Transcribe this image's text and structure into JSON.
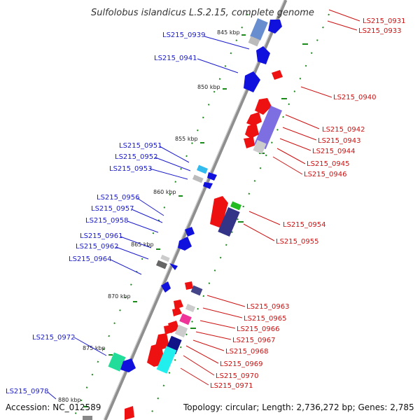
{
  "title": "Sulfolobus islandicus L.S.2.15, complete genome",
  "accession": "Accession: NC_012589",
  "summary": "Topology: circular; Length: 2,736,272 bp; Genes: 2,785",
  "colors": {
    "backbone": "#8f8f8f",
    "tick": "#1a8a1a",
    "forward_label": "#1a1acc",
    "reverse_label": "#cc1111"
  },
  "kbp_ticks": [
    "845 kbp",
    "850 kbp",
    "855 kbp",
    "860 kbp",
    "865 kbp",
    "870 kbp",
    "875 kbp",
    "880 kbp"
  ],
  "forward_genes": [
    "LS215_0939",
    "LS215_0941",
    "LS215_0951",
    "LS215_0952",
    "LS215_0953",
    "LS215_0956",
    "LS215_0957",
    "LS215_0958",
    "LS215_0961",
    "LS215_0962",
    "LS215_0964",
    "LS215_0972",
    "LS215_0978"
  ],
  "reverse_genes": [
    "LS215_0931",
    "LS215_0933",
    "LS215_0940",
    "LS215_0942",
    "LS215_0943",
    "LS215_0944",
    "LS215_0945",
    "LS215_0946",
    "LS215_0954",
    "LS215_0955",
    "LS215_0963",
    "LS215_0965",
    "LS215_0966",
    "LS215_0967",
    "LS215_0968",
    "LS215_0969",
    "LS215_0970",
    "LS215_0971"
  ]
}
